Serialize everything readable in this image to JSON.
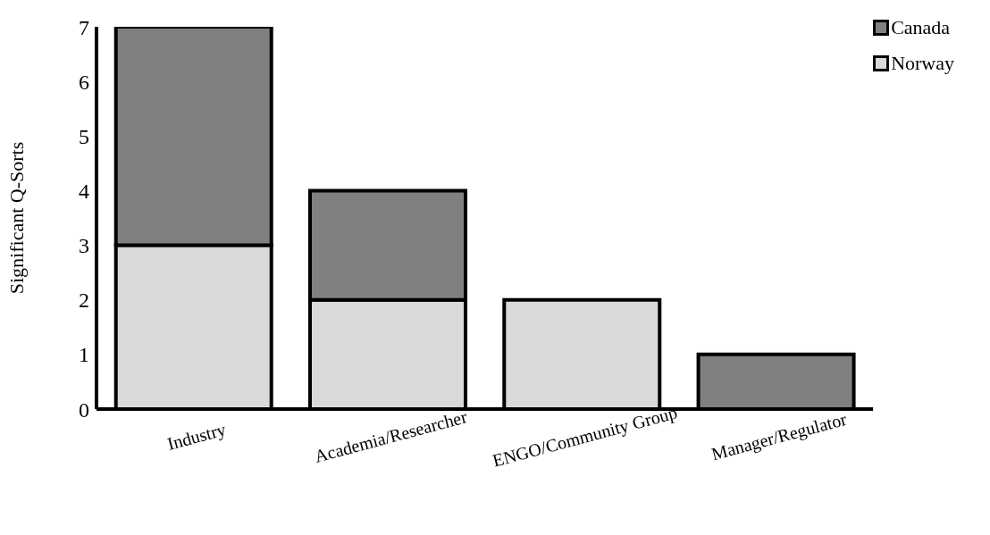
{
  "chart_data": {
    "type": "bar",
    "stacked": true,
    "ylabel": "Significant Q-Sorts",
    "categories": [
      "Industry",
      "Academia/Researcher",
      "ENGO/Community Group",
      "Manager/Regulator"
    ],
    "series": [
      {
        "name": "Norway",
        "color": "#d9d9d9",
        "values": [
          3,
          2,
          2,
          0
        ]
      },
      {
        "name": "Canada",
        "color": "#808080",
        "values": [
          4,
          2,
          0,
          1
        ]
      }
    ],
    "ylim": [
      0,
      7
    ],
    "yticks": [
      0,
      1,
      2,
      3,
      4,
      5,
      6,
      7
    ],
    "grid": false,
    "legend": "top right"
  }
}
